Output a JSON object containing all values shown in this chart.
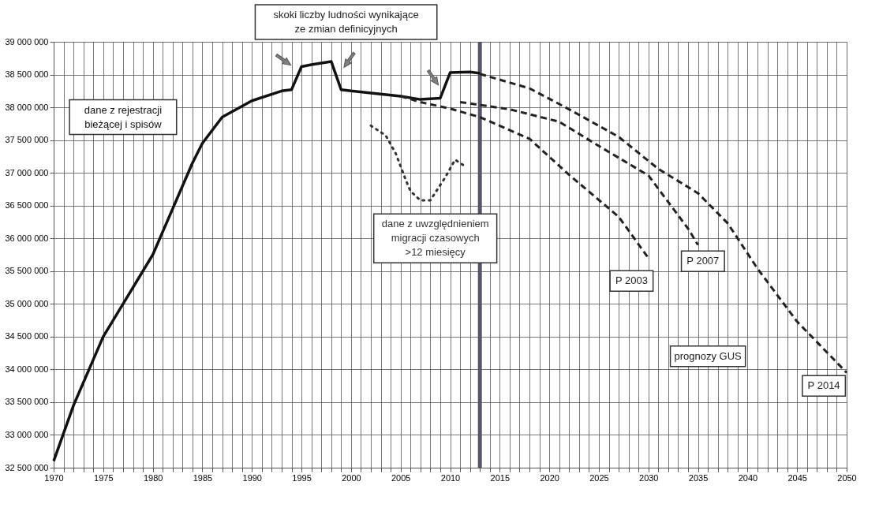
{
  "chart_data": {
    "type": "line",
    "annotations": [
      "skoki liczby ludności wynikające ze zmian definicyjnych",
      "prognozy GUS"
    ],
    "series": [
      {
        "name": "dane z rejestracji bieżącej i spisów",
        "color": "#111111",
        "line_style": "solid",
        "x": [
          1970,
          1972,
          1975,
          1977,
          1979,
          1980,
          1982,
          1984,
          1985,
          1987,
          1990,
          1993,
          1994,
          1995,
          1996,
          1998,
          1999,
          2000,
          2005,
          2007,
          2009,
          2010,
          2012,
          2013
        ],
        "values": [
          32600000,
          33450000,
          34500000,
          35000000,
          35500000,
          35750000,
          36450000,
          37150000,
          37450000,
          37850000,
          38100000,
          38250000,
          38270000,
          38620000,
          38650000,
          38700000,
          38270000,
          38250000,
          38170000,
          38120000,
          38140000,
          38530000,
          38540000,
          38520000
        ]
      },
      {
        "name": "dane z uwzględnieniem migracji czasowych >12 miesięcy",
        "color": "#333333",
        "line_style": "dotted",
        "x": [
          2002,
          2003.5,
          2004.5,
          2005.5,
          2006,
          2007,
          2008,
          2009.5,
          2010.5,
          2011.5
        ],
        "values": [
          37720000,
          37570000,
          37300000,
          36900000,
          36720000,
          36580000,
          36580000,
          36930000,
          37200000,
          37100000
        ]
      },
      {
        "name": "P 2003",
        "color": "#222222",
        "line_style": "dashed",
        "x": [
          2005,
          2007,
          2010,
          2013,
          2018,
          2022,
          2027,
          2030
        ],
        "values": [
          38170000,
          38080000,
          37980000,
          37850000,
          37520000,
          36970000,
          36330000,
          35700000
        ]
      },
      {
        "name": "P 2007",
        "color": "#222222",
        "line_style": "dashed",
        "x": [
          2011,
          2016,
          2021,
          2025,
          2030,
          2034,
          2035
        ],
        "values": [
          38080000,
          37970000,
          37780000,
          37410000,
          36960000,
          36150000,
          35900000
        ]
      },
      {
        "name": "P 2014",
        "color": "#222222",
        "line_style": "dashed",
        "x": [
          2013,
          2018,
          2022,
          2027,
          2031,
          2035,
          2038,
          2041,
          2045,
          2050
        ],
        "values": [
          38510000,
          38290000,
          37970000,
          37550000,
          37060000,
          36690000,
          36230000,
          35540000,
          34730000,
          33950000
        ]
      }
    ],
    "ref_lines": [
      {
        "axis": "x",
        "value": 2013,
        "color": "#55556a"
      }
    ],
    "xlim": [
      1970,
      2050
    ],
    "xticks": [
      1970,
      {
        "value": 1971,
        "label": null
      },
      {
        "value": 1972,
        "label": null
      },
      {
        "value": 1973,
        "label": null
      },
      {
        "value": 1974,
        "label": null
      },
      1975,
      {
        "value": 1976,
        "label": null
      },
      {
        "value": 1977,
        "label": null
      },
      {
        "value": 1978,
        "label": null
      },
      {
        "value": 1979,
        "label": null
      },
      1980,
      {
        "value": 1981,
        "label": null
      },
      {
        "value": 1982,
        "label": null
      },
      {
        "value": 1983,
        "label": null
      },
      {
        "value": 1984,
        "label": null
      },
      1985,
      {
        "value": 1986,
        "label": null
      },
      {
        "value": 1987,
        "label": null
      },
      {
        "value": 1988,
        "label": null
      },
      {
        "value": 1989,
        "label": null
      },
      1990,
      {
        "value": 1991,
        "label": null
      },
      {
        "value": 1992,
        "label": null
      },
      {
        "value": 1993,
        "label": null
      },
      {
        "value": 1994,
        "label": null
      },
      1995,
      {
        "value": 1996,
        "label": null
      },
      {
        "value": 1997,
        "label": null
      },
      {
        "value": 1998,
        "label": null
      },
      {
        "value": 1999,
        "label": null
      },
      2000,
      {
        "value": 2001,
        "label": null
      },
      {
        "value": 2002,
        "label": null
      },
      {
        "value": 2003,
        "label": null
      },
      {
        "value": 2004,
        "label": null
      },
      2005,
      {
        "value": 2006,
        "label": null
      },
      {
        "value": 2007,
        "label": null
      },
      {
        "value": 2008,
        "label": null
      },
      {
        "value": 2009,
        "label": null
      },
      2010,
      {
        "value": 2011,
        "label": null
      },
      {
        "value": 2012,
        "label": null
      },
      {
        "value": 2013,
        "label": null
      },
      {
        "value": 2014,
        "label": null
      },
      2015,
      {
        "value": 2016,
        "label": null
      },
      {
        "value": 2017,
        "label": null
      },
      {
        "value": 2018,
        "label": null
      },
      {
        "value": 2019,
        "label": null
      },
      2020,
      {
        "value": 2021,
        "label": null
      },
      {
        "value": 2022,
        "label": null
      },
      {
        "value": 2023,
        "label": null
      },
      {
        "value": 2024,
        "label": null
      },
      2025,
      {
        "value": 2026,
        "label": null
      },
      {
        "value": 2027,
        "label": null
      },
      {
        "value": 2028,
        "label": null
      },
      {
        "value": 2029,
        "label": null
      },
      2030,
      {
        "value": 2031,
        "label": null
      },
      {
        "value": 2032,
        "label": null
      },
      {
        "value": 2033,
        "label": null
      },
      {
        "value": 2034,
        "label": null
      },
      2035,
      {
        "value": 2036,
        "label": null
      },
      {
        "value": 2037,
        "label": null
      },
      {
        "value": 2038,
        "label": null
      },
      {
        "value": 2039,
        "label": null
      },
      2040,
      {
        "value": 2041,
        "label": null
      },
      {
        "value": 2042,
        "label": null
      },
      {
        "value": 2043,
        "label": null
      },
      {
        "value": 2044,
        "label": null
      },
      2045,
      {
        "value": 2046,
        "label": null
      },
      {
        "value": 2047,
        "label": null
      },
      {
        "value": 2048,
        "label": null
      },
      {
        "value": 2049,
        "label": null
      },
      2050
    ],
    "ylim": [
      32500000,
      39000000
    ],
    "yticks": [
      {
        "value": 32500000,
        "label": "32 500 000"
      },
      {
        "value": 33000000,
        "label": "33 000 000"
      },
      {
        "value": 33500000,
        "label": "33 500 000"
      },
      {
        "value": 34000000,
        "label": "34 000 000"
      },
      {
        "value": 34500000,
        "label": "34 500 000"
      },
      {
        "value": 35000000,
        "label": "35 000 000"
      },
      {
        "value": 35500000,
        "label": "35 500 000"
      },
      {
        "value": 36000000,
        "label": "36 000 000"
      },
      {
        "value": 36500000,
        "label": "36 500 000"
      },
      {
        "value": 37000000,
        "label": "37 000 000"
      },
      {
        "value": 37500000,
        "label": "37 500 000"
      },
      {
        "value": 38000000,
        "label": "38 000 000"
      },
      {
        "value": 38500000,
        "label": "38 500 000"
      },
      {
        "value": 39000000,
        "label": "39 000 000"
      }
    ],
    "grid": true,
    "marker": "none"
  }
}
